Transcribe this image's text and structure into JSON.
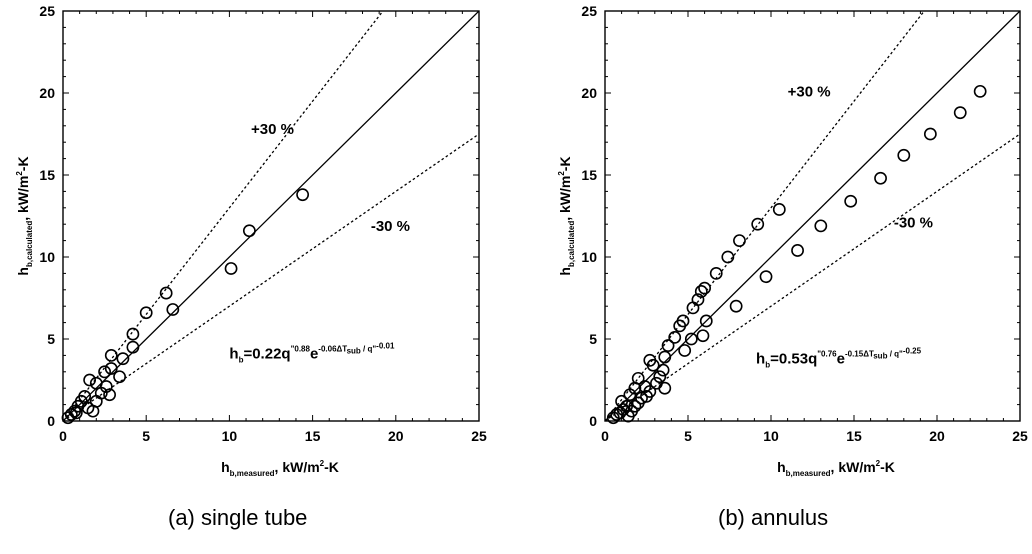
{
  "chart_data": [
    {
      "type": "scatter",
      "caption": "(a) single tube",
      "xlabel": {
        "main": "h",
        "sub": "b,measured",
        "sep": ",",
        "rest": "  kW/m",
        "sup": "2",
        "tail": "-K"
      },
      "ylabel": {
        "main": "h",
        "sub": "b,calculated",
        "sep": ",",
        "rest": "  kW/m",
        "sup": "2",
        "tail": "-K"
      },
      "xlim": [
        0,
        25
      ],
      "ylim": [
        0,
        25
      ],
      "xticks": [
        0,
        5,
        10,
        15,
        20,
        25
      ],
      "yticks": [
        0,
        5,
        10,
        15,
        20,
        25
      ],
      "lines": [
        {
          "name": "+30 %",
          "slope": 1.3,
          "style": "dotted"
        },
        {
          "name": "",
          "slope": 1.0,
          "style": "solid"
        },
        {
          "name": "-30 %",
          "slope": 0.7,
          "style": "dotted"
        }
      ],
      "annotations": [
        {
          "text": "+30 %",
          "x": 11.3,
          "y": 17.5
        },
        {
          "text": "-30 %",
          "x": 18.5,
          "y": 11.6
        }
      ],
      "equation": {
        "h": "h",
        "hsub": "b",
        "body": "=0.22q",
        "qexp": "\"0.88",
        "e": "e",
        "eexp": "-0.06ΔT",
        "eexpsub": "sub",
        "eexptail": " / q\"",
        "eexptailsup": "-0.01",
        "x": 10.0,
        "y": 3.8
      },
      "points": [
        [
          0.3,
          0.2
        ],
        [
          0.5,
          0.4
        ],
        [
          0.7,
          0.6
        ],
        [
          0.9,
          0.9
        ],
        [
          1.1,
          1.2
        ],
        [
          1.3,
          1.5
        ],
        [
          0.8,
          0.5
        ],
        [
          1.5,
          0.8
        ],
        [
          1.8,
          0.6
        ],
        [
          2.0,
          1.2
        ],
        [
          2.3,
          1.7
        ],
        [
          1.6,
          2.5
        ],
        [
          2.0,
          2.3
        ],
        [
          2.6,
          2.1
        ],
        [
          2.8,
          1.6
        ],
        [
          2.5,
          3.0
        ],
        [
          2.9,
          3.2
        ],
        [
          2.9,
          4.0
        ],
        [
          3.4,
          2.7
        ],
        [
          3.6,
          3.8
        ],
        [
          4.2,
          5.3
        ],
        [
          4.2,
          4.5
        ],
        [
          5.0,
          6.6
        ],
        [
          6.2,
          7.8
        ],
        [
          6.6,
          6.8
        ],
        [
          10.1,
          9.3
        ],
        [
          11.2,
          11.6
        ],
        [
          14.4,
          13.8
        ]
      ]
    },
    {
      "type": "scatter",
      "caption": "(b) annulus",
      "xlabel": {
        "main": "h",
        "sub": "b,measured",
        "sep": ",",
        "rest": "  kW/m",
        "sup": "2",
        "tail": "-K"
      },
      "ylabel": {
        "main": "h",
        "sub": "b,calculated",
        "sep": ",",
        "rest": "  kW/m",
        "sup": "2",
        "tail": "-K"
      },
      "xlim": [
        0,
        25
      ],
      "ylim": [
        0,
        25
      ],
      "xticks": [
        0,
        5,
        10,
        15,
        20,
        25
      ],
      "yticks": [
        0,
        5,
        10,
        15,
        20,
        25
      ],
      "lines": [
        {
          "name": "+30 %",
          "slope": 1.3,
          "style": "dotted"
        },
        {
          "name": "",
          "slope": 1.0,
          "style": "solid"
        },
        {
          "name": "-30 %",
          "slope": 0.7,
          "style": "dotted"
        }
      ],
      "annotations": [
        {
          "text": "+30 %",
          "x": 11.0,
          "y": 19.8
        },
        {
          "text": "-30 %",
          "x": 17.4,
          "y": 11.8
        }
      ],
      "equation": {
        "h": "h",
        "hsub": "b",
        "body": "=0.53q",
        "qexp": "\"0.76",
        "e": "e",
        "eexp": "-0.15ΔT",
        "eexpsub": "sub",
        "eexptail": " / q\"",
        "eexptailsup": "-0.25",
        "x": 9.1,
        "y": 3.5
      },
      "points": [
        [
          0.5,
          0.2
        ],
        [
          0.7,
          0.4
        ],
        [
          0.9,
          0.5
        ],
        [
          1.1,
          0.7
        ],
        [
          1.3,
          0.9
        ],
        [
          1.0,
          1.2
        ],
        [
          1.4,
          0.3
        ],
        [
          1.6,
          0.6
        ],
        [
          1.8,
          0.9
        ],
        [
          2.0,
          1.1
        ],
        [
          2.2,
          1.4
        ],
        [
          1.5,
          1.6
        ],
        [
          1.8,
          2.0
        ],
        [
          2.0,
          2.6
        ],
        [
          2.4,
          2.1
        ],
        [
          2.5,
          1.5
        ],
        [
          2.7,
          1.8
        ],
        [
          2.7,
          3.7
        ],
        [
          2.9,
          3.4
        ],
        [
          3.1,
          2.3
        ],
        [
          3.3,
          2.7
        ],
        [
          3.5,
          3.1
        ],
        [
          3.6,
          3.9
        ],
        [
          3.8,
          4.6
        ],
        [
          3.6,
          2.0
        ],
        [
          4.2,
          5.1
        ],
        [
          4.5,
          5.8
        ],
        [
          4.7,
          6.1
        ],
        [
          4.8,
          4.3
        ],
        [
          5.2,
          5.0
        ],
        [
          5.3,
          6.9
        ],
        [
          5.6,
          7.4
        ],
        [
          5.8,
          7.9
        ],
        [
          6.0,
          8.1
        ],
        [
          6.1,
          6.1
        ],
        [
          5.9,
          5.2
        ],
        [
          6.7,
          9.0
        ],
        [
          7.4,
          10.0
        ],
        [
          8.1,
          11.0
        ],
        [
          9.2,
          12.0
        ],
        [
          10.5,
          12.9
        ],
        [
          7.9,
          7.0
        ],
        [
          9.7,
          8.8
        ],
        [
          11.6,
          10.4
        ],
        [
          13.0,
          11.9
        ],
        [
          14.8,
          13.4
        ],
        [
          16.6,
          14.8
        ],
        [
          18.0,
          16.2
        ],
        [
          19.6,
          17.5
        ],
        [
          21.4,
          18.8
        ],
        [
          22.6,
          20.1
        ]
      ]
    }
  ]
}
